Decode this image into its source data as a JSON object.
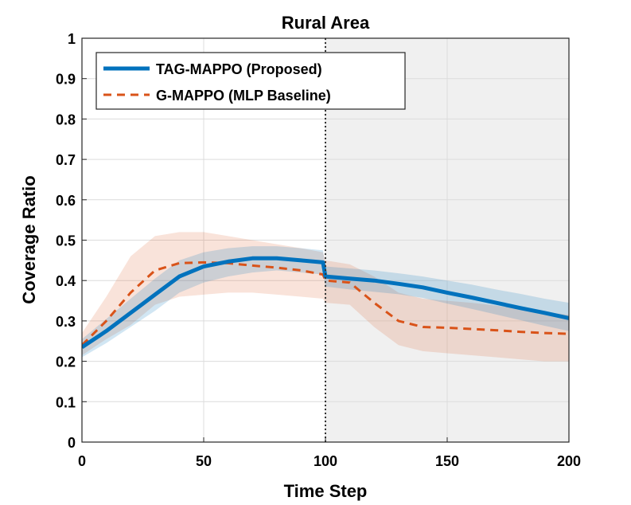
{
  "chart_data": {
    "type": "line",
    "title": "Rural Area",
    "xlabel": "Time Step",
    "ylabel": "Coverage Ratio",
    "xlim": [
      0,
      200
    ],
    "ylim": [
      0,
      1
    ],
    "x_ticks": [
      0,
      50,
      100,
      150,
      200
    ],
    "y_ticks": [
      0,
      0.1,
      0.2,
      0.3,
      0.4,
      0.5,
      0.6,
      0.7,
      0.8,
      0.9,
      1
    ],
    "x_tick_labels": [
      "0",
      "50",
      "100",
      "150",
      "200"
    ],
    "y_tick_labels": [
      "0",
      "0.1",
      "0.2",
      "0.3",
      "0.4",
      "0.5",
      "0.6",
      "0.7",
      "0.8",
      "0.9",
      "1"
    ],
    "grid": true,
    "shaded_region": {
      "x_start": 100,
      "x_end": 200,
      "color": "#f0f0f0"
    },
    "vertical_line": {
      "x": 100,
      "style": "dotted",
      "color": "#333333"
    },
    "legend_position": "top-left",
    "x": [
      0,
      10,
      20,
      30,
      40,
      50,
      60,
      70,
      80,
      90,
      99,
      100,
      110,
      120,
      130,
      140,
      150,
      160,
      170,
      180,
      190,
      200
    ],
    "series": [
      {
        "name": "TAG-MAPPO (Proposed)",
        "color": "#0072BD",
        "style": "solid",
        "values": [
          0.235,
          0.275,
          0.32,
          0.365,
          0.41,
          0.435,
          0.447,
          0.455,
          0.455,
          0.45,
          0.445,
          0.41,
          0.405,
          0.4,
          0.392,
          0.383,
          0.37,
          0.358,
          0.345,
          0.332,
          0.32,
          0.307
        ],
        "upper": [
          0.255,
          0.305,
          0.355,
          0.405,
          0.45,
          0.47,
          0.48,
          0.485,
          0.485,
          0.48,
          0.475,
          0.435,
          0.43,
          0.425,
          0.418,
          0.41,
          0.4,
          0.39,
          0.378,
          0.367,
          0.355,
          0.345
        ],
        "lower": [
          0.21,
          0.245,
          0.285,
          0.325,
          0.37,
          0.395,
          0.41,
          0.42,
          0.425,
          0.42,
          0.415,
          0.385,
          0.378,
          0.372,
          0.366,
          0.357,
          0.343,
          0.33,
          0.316,
          0.302,
          0.288,
          0.275
        ]
      },
      {
        "name": "G-MAPPO (MLP Baseline)",
        "color": "#D95319",
        "style": "dashed",
        "values": [
          0.24,
          0.3,
          0.37,
          0.425,
          0.443,
          0.445,
          0.443,
          0.437,
          0.432,
          0.425,
          0.415,
          0.4,
          0.395,
          0.345,
          0.3,
          0.285,
          0.283,
          0.28,
          0.277,
          0.273,
          0.27,
          0.268
        ],
        "upper": [
          0.27,
          0.36,
          0.46,
          0.51,
          0.52,
          0.52,
          0.51,
          0.5,
          0.49,
          0.48,
          0.47,
          0.45,
          0.44,
          0.41,
          0.37,
          0.355,
          0.35,
          0.345,
          0.338,
          0.33,
          0.322,
          0.315
        ],
        "lower": [
          0.215,
          0.255,
          0.29,
          0.34,
          0.36,
          0.365,
          0.37,
          0.37,
          0.365,
          0.36,
          0.355,
          0.345,
          0.34,
          0.285,
          0.24,
          0.225,
          0.22,
          0.215,
          0.21,
          0.205,
          0.2,
          0.2
        ]
      }
    ]
  }
}
